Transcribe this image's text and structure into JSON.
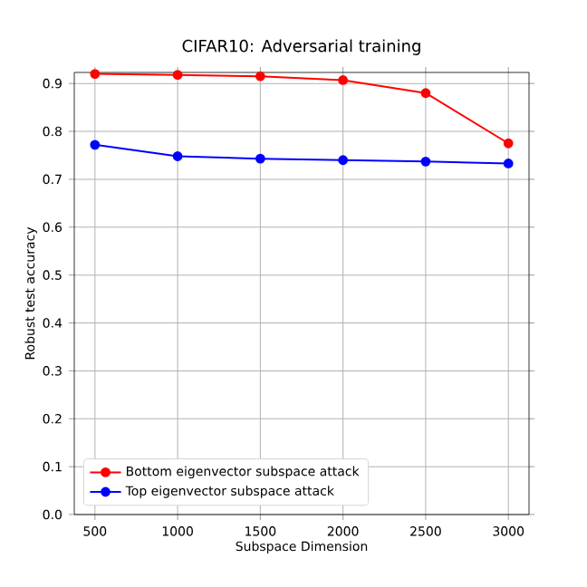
{
  "chart_data": {
    "type": "line",
    "title": "CIFAR10: Adversarial training",
    "xlabel": "Subspace Dimension",
    "ylabel": "Robust test accuracy",
    "x": [
      500,
      1000,
      1500,
      2000,
      2500,
      3000
    ],
    "series": [
      {
        "name": "Bottom eigenvector subspace attack",
        "color": "#ff0000",
        "values": [
          0.92,
          0.918,
          0.915,
          0.907,
          0.88,
          0.775
        ]
      },
      {
        "name": "Top eigenvector subspace attack",
        "color": "#0000ff",
        "values": [
          0.772,
          0.748,
          0.743,
          0.74,
          0.737,
          0.733
        ]
      }
    ],
    "xlim": [
      375,
      3125
    ],
    "ylim": [
      0,
      0.923
    ],
    "xticks": [
      500,
      1000,
      1500,
      2000,
      2500,
      3000
    ],
    "yticks": [
      {
        "value": 0,
        "label": "0.0"
      },
      0.1,
      0.2,
      0.3,
      0.4,
      0.5,
      0.6,
      0.7,
      0.8,
      0.9
    ],
    "grid": true,
    "legend": "bottom left",
    "marker": "circle",
    "line_style": "solid"
  }
}
